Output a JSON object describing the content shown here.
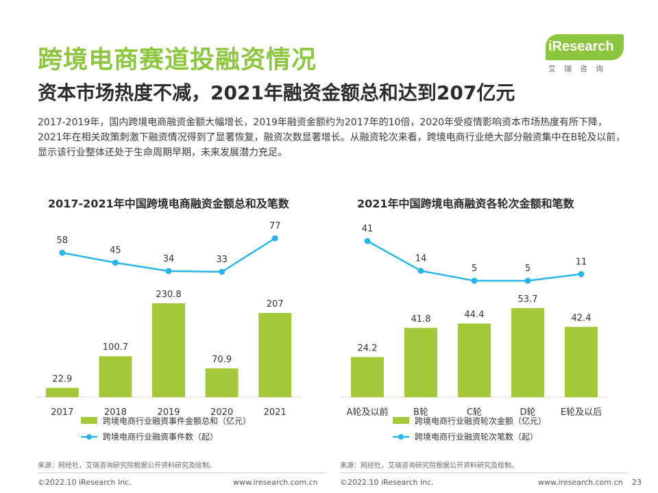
{
  "page": {
    "title": "跨境电商赛道投融资情况",
    "subtitle": "资本市场热度不减，2021年融资金额总和达到207亿元",
    "intro": "2017-2019年，国内跨境电商融资金额大幅增长，2019年融资金额约为2017年的10倍，2020年受疫情影响资本市场热度有所下降，2021年在相关政策刺激下融资情况得到了显著恢复，融资次数显著增长。从融资轮次来看，跨境电商行业绝大部分融资集中在B轮及以前，显示该行业整体还处于生命周期早期，未来发展潜力充足。",
    "logo_brand": "iResearch",
    "logo_cn": "艾瑞咨询",
    "source_left": "来源：网经社，艾瑞咨询研究院根据公开资料研究及绘制。",
    "source_right": "来源：网经社，艾瑞咨询研究院根据公开资料研究及绘制。",
    "footer_left": "©2022.10 iResearch Inc.",
    "footer_mid": "www.iresearch.com.cn",
    "footer_left2": "©2022.10 iResearch Inc.",
    "footer_right": "www.iresearch.com.cn",
    "page_number": "23"
  },
  "colors": {
    "accent": "#8cc63e",
    "bar": "#a3c93a",
    "line": "#29b5e8"
  },
  "chart_data": [
    {
      "type": "bar",
      "title": "2017-2021年中国跨境电商融资金额总和及笔数",
      "categories": [
        "2017",
        "2018",
        "2019",
        "2020",
        "2021"
      ],
      "series": [
        {
          "name": "跨境电商行业融资事件金额总和（亿元）",
          "type": "bar",
          "values": [
            22.9,
            100.7,
            230.8,
            70.9,
            207
          ]
        },
        {
          "name": "跨境电商行业融资事件数（起）",
          "type": "line",
          "values": [
            58,
            45,
            34,
            33,
            77
          ]
        }
      ],
      "legend": "bottom"
    },
    {
      "type": "bar",
      "title": "2021年中国跨境电商融资各轮次金额和笔数",
      "categories": [
        "A轮及以前",
        "B轮",
        "C轮",
        "D轮",
        "E轮及以后"
      ],
      "series": [
        {
          "name": "跨境电商行业融资轮次金额（亿元）",
          "type": "bar",
          "values": [
            24.2,
            41.8,
            44.4,
            53.7,
            42.4
          ]
        },
        {
          "name": "跨境电商行业融资轮次笔数（起）",
          "type": "line",
          "values": [
            41,
            14,
            5,
            5,
            11
          ]
        }
      ],
      "legend": "bottom"
    }
  ]
}
